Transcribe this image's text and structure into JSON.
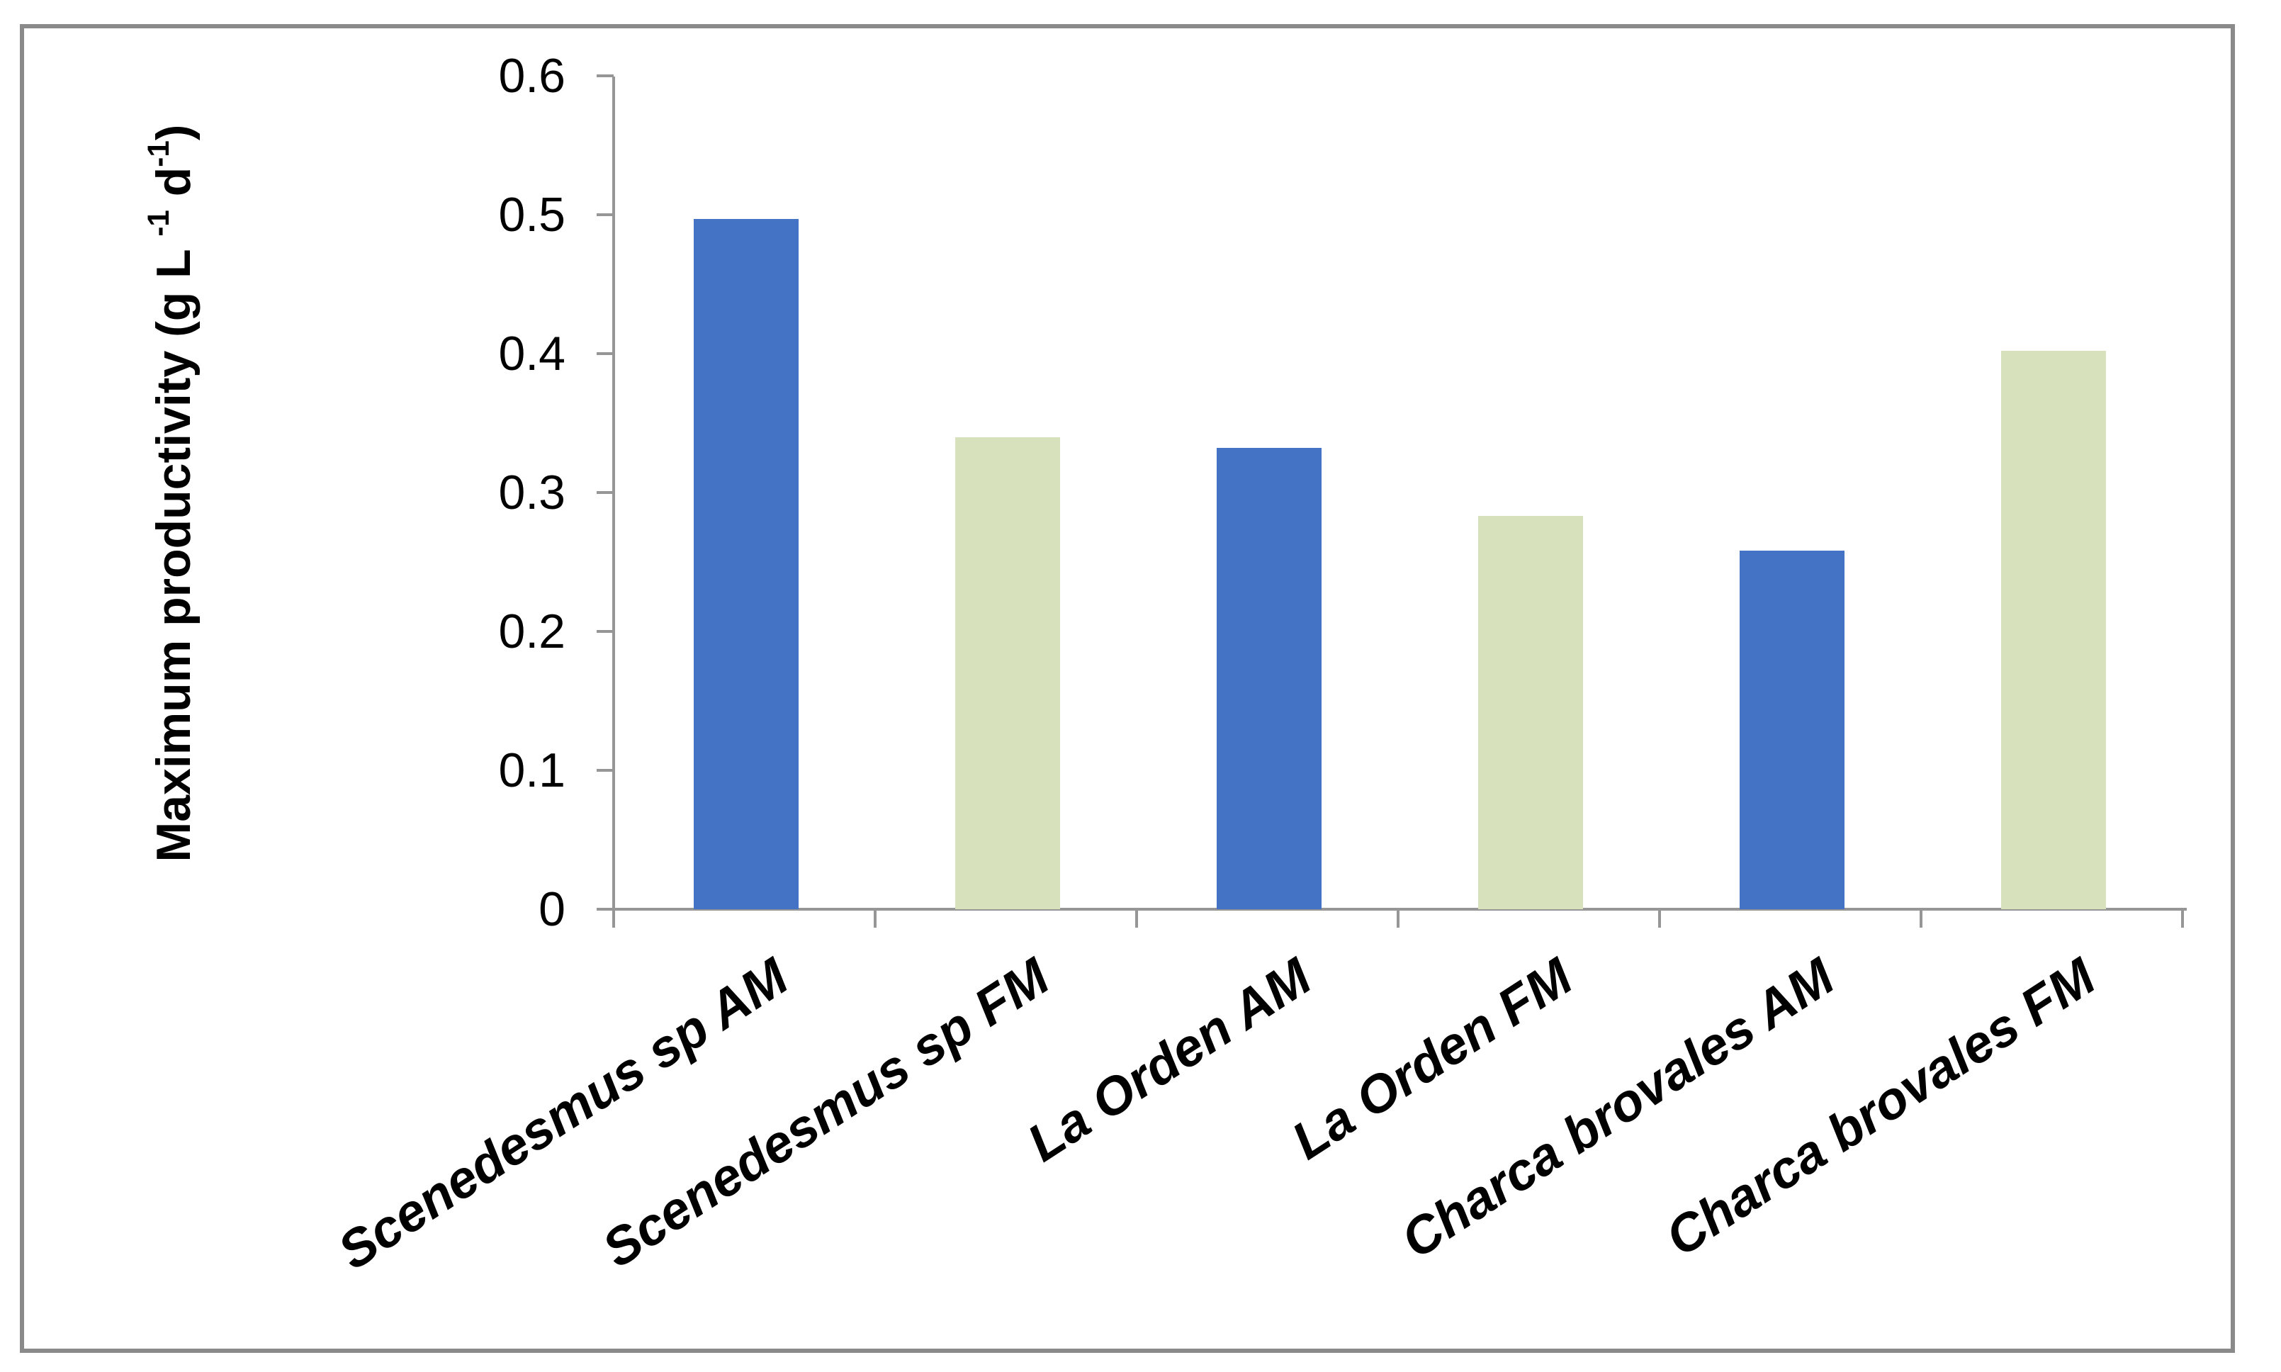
{
  "figure": {
    "background": "#FFFFFF",
    "frame_color": "#8A8A8A"
  },
  "chart_data": {
    "type": "bar",
    "title": "",
    "categories": [
      "Scenedesmus sp AM",
      "Scenedesmus sp FM",
      "La Orden AM",
      "La Orden FM",
      "Charca brovales AM",
      "Charca brovales FM"
    ],
    "values": [
      0.497,
      0.34,
      0.332,
      0.283,
      0.258,
      0.402
    ],
    "bar_colors": [
      "#4472C4",
      "#D7E2BD",
      "#4472C4",
      "#D7E2BD",
      "#4472C4",
      "#D7E2BD"
    ],
    "accent_colors": {
      "am_bar_blue": "#4472C4",
      "fm_bar_green": "#D7E2BD",
      "axis_gray": "#969696",
      "frame_gray": "#8A8A8A"
    },
    "ylabel_plain": "Maximum productivity (g L -1 d-1)",
    "ylabel_parts": {
      "before_sup1": "Maximum productivity (g L ",
      "sup1": "-1",
      "between": " d",
      "sup2": "-1",
      "after": ")"
    },
    "xlabel": "",
    "yticks": [
      {
        "label": "0",
        "value": 0
      },
      {
        "label": "0.1",
        "value": 0.1
      },
      {
        "label": "0.2",
        "value": 0.2
      },
      {
        "label": "0.3",
        "value": 0.3
      },
      {
        "label": "0.4",
        "value": 0.4
      },
      {
        "label": "0.5",
        "value": 0.5
      },
      {
        "label": "0.6",
        "value": 0.6
      }
    ],
    "ylim": [
      0,
      0.6
    ],
    "grid": false,
    "legend_position": "none",
    "x_label_rotation_deg": 33,
    "text_color": "#000000"
  }
}
